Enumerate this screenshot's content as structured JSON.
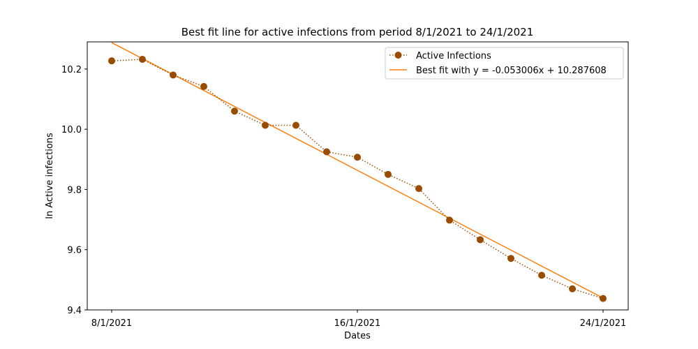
{
  "chart_data": {
    "type": "line",
    "title": "Best fit line for active infections from period 8/1/2021 to 24/1/2021",
    "xlabel": "Dates",
    "ylabel": "ln Active infections",
    "x_tick_labels": [
      "8/1/2021",
      "16/1/2021",
      "24/1/2021"
    ],
    "x_ticks_at": [
      "8/1/2021",
      "16/1/2021",
      "24/1/2021"
    ],
    "x": [
      "8/1/2021",
      "9/1/2021",
      "10/1/2021",
      "11/1/2021",
      "12/1/2021",
      "13/1/2021",
      "14/1/2021",
      "15/1/2021",
      "16/1/2021",
      "17/1/2021",
      "18/1/2021",
      "19/1/2021",
      "20/1/2021",
      "21/1/2021",
      "22/1/2021",
      "23/1/2021",
      "24/1/2021"
    ],
    "xlim": [
      "7/1/2021",
      "24/1/2021"
    ],
    "ylim": [
      9.4,
      10.3
    ],
    "y_ticks": [
      9.4,
      9.6,
      9.8,
      10.0,
      10.2
    ],
    "grid": false,
    "legend_position": "top-right",
    "series": [
      {
        "name": "Active Infections",
        "style": "dotted-with-markers",
        "color": "#994c00",
        "values": [
          10.227,
          10.232,
          10.18,
          10.142,
          10.06,
          10.013,
          10.013,
          9.925,
          9.907,
          9.85,
          9.803,
          9.698,
          9.633,
          9.571,
          9.515,
          9.47,
          9.438
        ]
      },
      {
        "name": "Best fit with y = -0.053006x + 10.287608",
        "style": "solid",
        "color": "#ff7f0e",
        "x_range": [
          "8/1/2021",
          "24/1/2021"
        ],
        "slope": -0.053006,
        "intercept": 10.287608
      }
    ]
  }
}
